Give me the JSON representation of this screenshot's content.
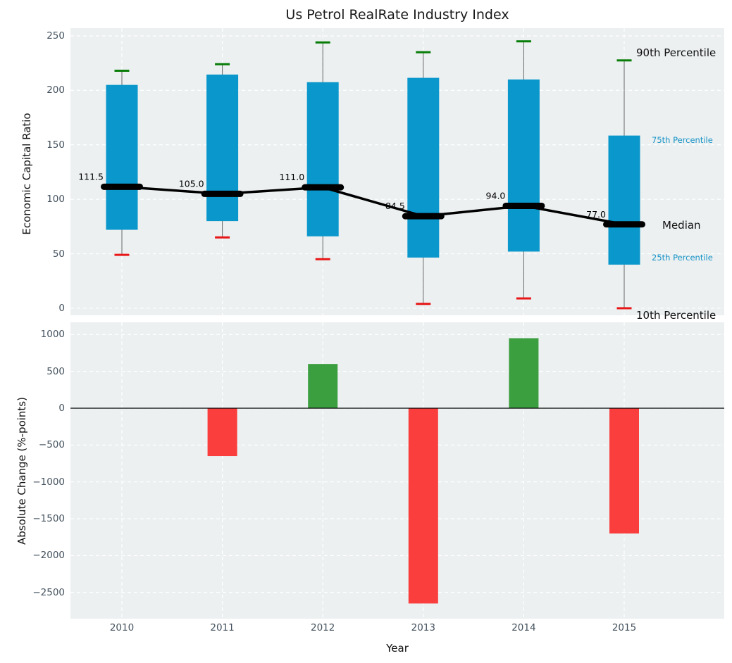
{
  "title": "Us Petrol RealRate Industry Index",
  "colors": {
    "axes_background": "#ecf0f1",
    "grid": "#ffffff",
    "iqr_bar_blue": "#0a97cb",
    "cap_green": "#077d07",
    "cap_red": "#e81616",
    "median_black": "#000000",
    "whisker_gray": "#666666",
    "positive_bar_green": "#3b9e3f",
    "negative_bar_red": "#fa3d3d",
    "tick_text": "#44525e",
    "percentile_label_blue": "#1693c6"
  },
  "chart_data": [
    {
      "type": "percentile_bars",
      "title": "Us Petrol RealRate Industry Index",
      "ylabel": "Economic Capital Ratio",
      "categories": [
        "2010",
        "2011",
        "2012",
        "2013",
        "2014",
        "2015"
      ],
      "series": [
        {
          "name": "90th Percentile",
          "values": [
            218,
            224,
            244,
            235,
            245,
            227.5
          ]
        },
        {
          "name": "75th Percentile",
          "values": [
            205,
            214.5,
            207.5,
            211.5,
            210,
            158.5
          ]
        },
        {
          "name": "Median",
          "values": [
            111.5,
            105.0,
            111.0,
            84.5,
            94.0,
            77.0
          ]
        },
        {
          "name": "25th Percentile",
          "values": [
            72,
            80,
            66,
            46.5,
            52,
            40
          ]
        },
        {
          "name": "10th Percentile",
          "values": [
            49,
            65,
            45,
            4,
            9,
            0
          ]
        }
      ],
      "median_labels": [
        "111.5",
        "105.0",
        "111.0",
        "84.5",
        "94.0",
        "77.0"
      ],
      "annotations": [
        "90th Percentile",
        "75th Percentile",
        "Median",
        "25th Percentile",
        "10th Percentile"
      ],
      "yticks": [
        250,
        200,
        150,
        100,
        50,
        0
      ],
      "ytick_labels": [
        "250",
        "200",
        "150",
        "100",
        "50",
        "0"
      ],
      "ylim": [
        -6.5,
        257.1
      ],
      "grid": true,
      "legend_position": "right-annotations"
    },
    {
      "type": "bar",
      "ylabel": "Absolute Change (%-points)",
      "xlabel": "Year",
      "categories": [
        "2010",
        "2011",
        "2012",
        "2013",
        "2014",
        "2015"
      ],
      "values": [
        null,
        -650,
        600,
        -2650,
        950,
        -1700
      ],
      "yticks": [
        1000,
        500,
        0,
        -500,
        -1000,
        -1500,
        -2000,
        -2500
      ],
      "ytick_labels": [
        "1000",
        "500",
        "0",
        "−500",
        "−1000",
        "−1500",
        "−2000",
        "−2500"
      ],
      "ylim": [
        -2856,
        1165
      ],
      "grid": true
    }
  ]
}
